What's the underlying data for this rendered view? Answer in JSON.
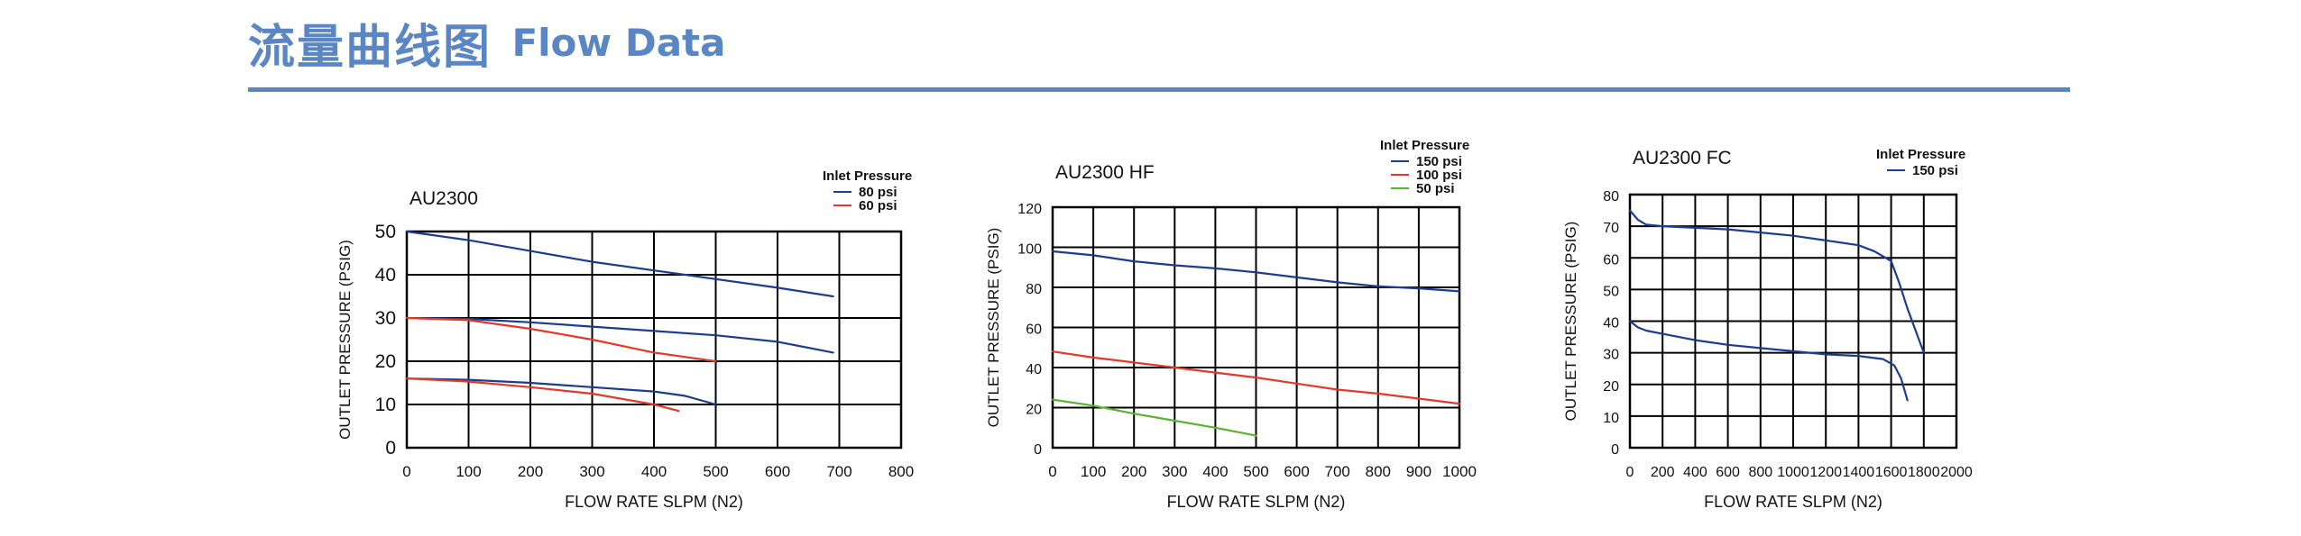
{
  "header": {
    "title_cn": "流量曲线图",
    "title_en": "Flow Data"
  },
  "colors": {
    "accent": "#5a86c4",
    "blue": "#1d3c8f",
    "red": "#e03a2a",
    "green": "#5cb231",
    "grid": "#000000"
  },
  "chart_data": [
    {
      "type": "line",
      "title": "AU2300",
      "xlabel": "FLOW RATE SLPM (N2)",
      "ylabel": "OUTLET PRESSURE (PSIG)",
      "xlim": [
        0,
        800
      ],
      "ylim": [
        0,
        50
      ],
      "xticks": [
        0,
        100,
        200,
        300,
        400,
        500,
        600,
        700,
        800
      ],
      "yticks": [
        0,
        10,
        20,
        30,
        40,
        50
      ],
      "legend_title": "Inlet Pressure",
      "legend": [
        {
          "label": "80  psi",
          "color": "#1d3c8f"
        },
        {
          "label": "60  psi",
          "color": "#e03a2a"
        }
      ],
      "grid": true,
      "series": [
        {
          "color": "#1d3c8f",
          "points": [
            [
              0,
              50
            ],
            [
              100,
              48
            ],
            [
              200,
              45.5
            ],
            [
              300,
              43
            ],
            [
              400,
              41
            ],
            [
              500,
              39
            ],
            [
              600,
              37
            ],
            [
              690,
              35
            ]
          ]
        },
        {
          "color": "#1d3c8f",
          "points": [
            [
              0,
              30
            ],
            [
              100,
              29.8
            ],
            [
              200,
              29
            ],
            [
              300,
              28
            ],
            [
              400,
              27
            ],
            [
              500,
              26
            ],
            [
              600,
              24.5
            ],
            [
              690,
              22
            ]
          ]
        },
        {
          "color": "#1d3c8f",
          "points": [
            [
              0,
              16
            ],
            [
              100,
              15.7
            ],
            [
              200,
              15
            ],
            [
              300,
              14
            ],
            [
              400,
              13
            ],
            [
              450,
              12
            ],
            [
              500,
              10
            ]
          ]
        },
        {
          "color": "#e03a2a",
          "points": [
            [
              0,
              30
            ],
            [
              100,
              29.5
            ],
            [
              200,
              27.5
            ],
            [
              300,
              25
            ],
            [
              400,
              22
            ],
            [
              450,
              21
            ],
            [
              500,
              20
            ]
          ]
        },
        {
          "color": "#e03a2a",
          "points": [
            [
              0,
              16
            ],
            [
              100,
              15.3
            ],
            [
              200,
              14
            ],
            [
              300,
              12.5
            ],
            [
              400,
              10
            ],
            [
              440,
              8.5
            ]
          ]
        }
      ]
    },
    {
      "type": "line",
      "title": "AU2300  HF",
      "xlabel": "FLOW RATE SLPM (N2)",
      "ylabel": "OUTLET PRESSURE (PSIG)",
      "xlim": [
        0,
        1000
      ],
      "ylim": [
        0,
        120
      ],
      "xticks": [
        0,
        100,
        200,
        300,
        400,
        500,
        600,
        700,
        800,
        900,
        1000
      ],
      "yticks": [
        0,
        20,
        40,
        60,
        80,
        100,
        120
      ],
      "legend_title": "Inlet Pressure",
      "legend": [
        {
          "label": "150  psi",
          "color": "#1d3c8f"
        },
        {
          "label": "100  psi",
          "color": "#e03a2a"
        },
        {
          "label": "50  psi",
          "color": "#5cb231"
        }
      ],
      "grid": true,
      "series": [
        {
          "color": "#1d3c8f",
          "points": [
            [
              0,
              98
            ],
            [
              100,
              96
            ],
            [
              200,
              93
            ],
            [
              300,
              91
            ],
            [
              400,
              89.5
            ],
            [
              500,
              87.5
            ],
            [
              600,
              85
            ],
            [
              700,
              82.5
            ],
            [
              800,
              80.5
            ],
            [
              900,
              79.5
            ],
            [
              1000,
              78
            ]
          ]
        },
        {
          "color": "#e03a2a",
          "points": [
            [
              0,
              48
            ],
            [
              100,
              45
            ],
            [
              200,
              42.5
            ],
            [
              300,
              40
            ],
            [
              400,
              37.5
            ],
            [
              500,
              35
            ],
            [
              600,
              32
            ],
            [
              700,
              29
            ],
            [
              800,
              27
            ],
            [
              900,
              24.5
            ],
            [
              1000,
              22
            ]
          ]
        },
        {
          "color": "#5cb231",
          "points": [
            [
              0,
              24
            ],
            [
              100,
              21
            ],
            [
              200,
              17
            ],
            [
              300,
              13.5
            ],
            [
              400,
              10
            ],
            [
              500,
              6
            ]
          ]
        }
      ]
    },
    {
      "type": "line",
      "title": "AU2300  FC",
      "xlabel": "FLOW RATE SLPM (N2)",
      "ylabel": "OUTLET PRESSURE (PSIG)",
      "xlim": [
        0,
        2000
      ],
      "ylim": [
        0,
        80
      ],
      "xticks": [
        0,
        200,
        400,
        600,
        800,
        1000,
        1200,
        1400,
        1600,
        1800,
        2000
      ],
      "yticks": [
        0,
        10,
        20,
        30,
        40,
        50,
        60,
        70,
        80
      ],
      "legend_title": "Inlet Pressure",
      "legend": [
        {
          "label": "150  psi",
          "color": "#1d3c8f"
        }
      ],
      "grid": true,
      "series": [
        {
          "color": "#1d3c8f",
          "points": [
            [
              0,
              75
            ],
            [
              50,
              72
            ],
            [
              100,
              70.5
            ],
            [
              200,
              70
            ],
            [
              400,
              69.5
            ],
            [
              600,
              69
            ],
            [
              800,
              68
            ],
            [
              1000,
              67
            ],
            [
              1200,
              65.5
            ],
            [
              1400,
              64
            ],
            [
              1500,
              62
            ],
            [
              1600,
              59
            ],
            [
              1650,
              52
            ],
            [
              1700,
              44
            ],
            [
              1800,
              30
            ]
          ]
        },
        {
          "color": "#1d3c8f",
          "points": [
            [
              0,
              40
            ],
            [
              50,
              38
            ],
            [
              100,
              37
            ],
            [
              200,
              36
            ],
            [
              400,
              34
            ],
            [
              600,
              32.5
            ],
            [
              800,
              31.5
            ],
            [
              1000,
              30.5
            ],
            [
              1200,
              29.5
            ],
            [
              1400,
              29
            ],
            [
              1550,
              28
            ],
            [
              1620,
              26
            ],
            [
              1660,
              22
            ],
            [
              1700,
              15
            ]
          ]
        }
      ]
    }
  ]
}
